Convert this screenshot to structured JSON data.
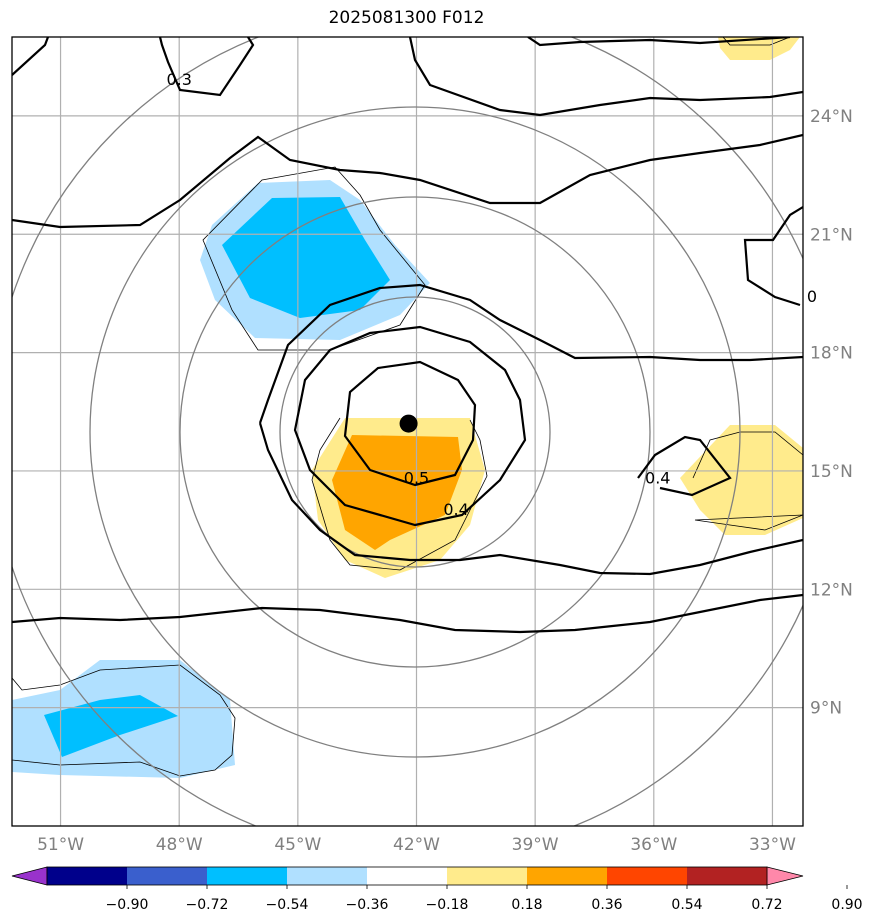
{
  "title": "2025081300 F012",
  "map": {
    "lon_range": [
      -52,
      -32
    ],
    "lat_range": [
      6,
      26
    ],
    "lon_ticks": [
      {
        "value": -51,
        "label": "51°W"
      },
      {
        "value": -48,
        "label": "48°W"
      },
      {
        "value": -45,
        "label": "45°W"
      },
      {
        "value": -42,
        "label": "42°W"
      },
      {
        "value": -39,
        "label": "39°W"
      },
      {
        "value": -36,
        "label": "36°W"
      },
      {
        "value": -33,
        "label": "33°W"
      }
    ],
    "lat_ticks": [
      {
        "value": 9,
        "label": "9°N"
      },
      {
        "value": 12,
        "label": "12°N"
      },
      {
        "value": 15,
        "label": "15°N"
      },
      {
        "value": 18,
        "label": "18°N"
      },
      {
        "value": 21,
        "label": "21°N"
      },
      {
        "value": 24,
        "label": "24°N"
      }
    ],
    "storm_center": {
      "lon": -42.2,
      "lat": 16.2
    },
    "contour_labels": [
      {
        "text": "0.3",
        "lon": -48.0,
        "lat": 24.9
      },
      {
        "text": "0.5",
        "lon": -42.0,
        "lat": 14.8
      },
      {
        "text": "0.4",
        "lon": -41.0,
        "lat": 14.0
      },
      {
        "text": "0.4",
        "lon": -35.9,
        "lat": 14.8
      },
      {
        "text": "0",
        "lon": -32.0,
        "lat": 19.4
      }
    ],
    "grid": true
  },
  "colorbar": {
    "labels": [
      "−0.90",
      "−0.72",
      "−0.54",
      "−0.36",
      "−0.18",
      "0.18",
      "0.36",
      "0.54",
      "0.72",
      "0.90"
    ],
    "colors": [
      "#9932cc",
      "#00008b",
      "#3a5fcd",
      "#00bfff",
      "#b0e0ff",
      "#ffffff",
      "#ffeb8c",
      "#ffa500",
      "#ff4500",
      "#b22222",
      "#ff88aa"
    ],
    "extend": "both"
  }
}
